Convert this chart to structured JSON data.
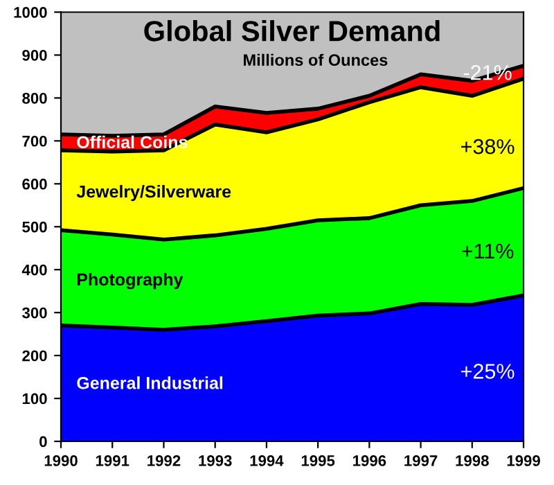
{
  "chart_data": {
    "type": "area",
    "stacked": true,
    "title": "Global Silver Demand",
    "subtitle": "Millions of Ounces",
    "x": [
      1990,
      1991,
      1992,
      1993,
      1994,
      1995,
      1996,
      1997,
      1998,
      1999
    ],
    "series": [
      {
        "name": "General Industrial",
        "color": "#0000ff",
        "values": [
          270,
          265,
          260,
          268,
          280,
          293,
          298,
          320,
          318,
          340
        ]
      },
      {
        "name": "Photography",
        "color": "#00ff00",
        "values": [
          222,
          217,
          210,
          212,
          215,
          222,
          222,
          230,
          242,
          250
        ]
      },
      {
        "name": "Jewelry/Silverware",
        "color": "#ffff00",
        "values": [
          186,
          193,
          208,
          258,
          225,
          235,
          270,
          275,
          245,
          255
        ]
      },
      {
        "name": "Official Coins",
        "color": "#ff0000",
        "values": [
          37,
          37,
          37,
          42,
          45,
          25,
          15,
          30,
          35,
          30
        ]
      }
    ],
    "annotations": [
      "+25%",
      "+11%",
      "+38%",
      "-21%"
    ],
    "xlim": [
      1990,
      1999
    ],
    "xticks": [
      1990,
      1991,
      1992,
      1993,
      1994,
      1995,
      1996,
      1997,
      1998,
      1999
    ],
    "ylim": [
      0,
      1000
    ],
    "yticks": [
      0,
      100,
      200,
      300,
      400,
      500,
      600,
      700,
      800,
      900,
      1000
    ],
    "grid": false,
    "legend": false
  }
}
